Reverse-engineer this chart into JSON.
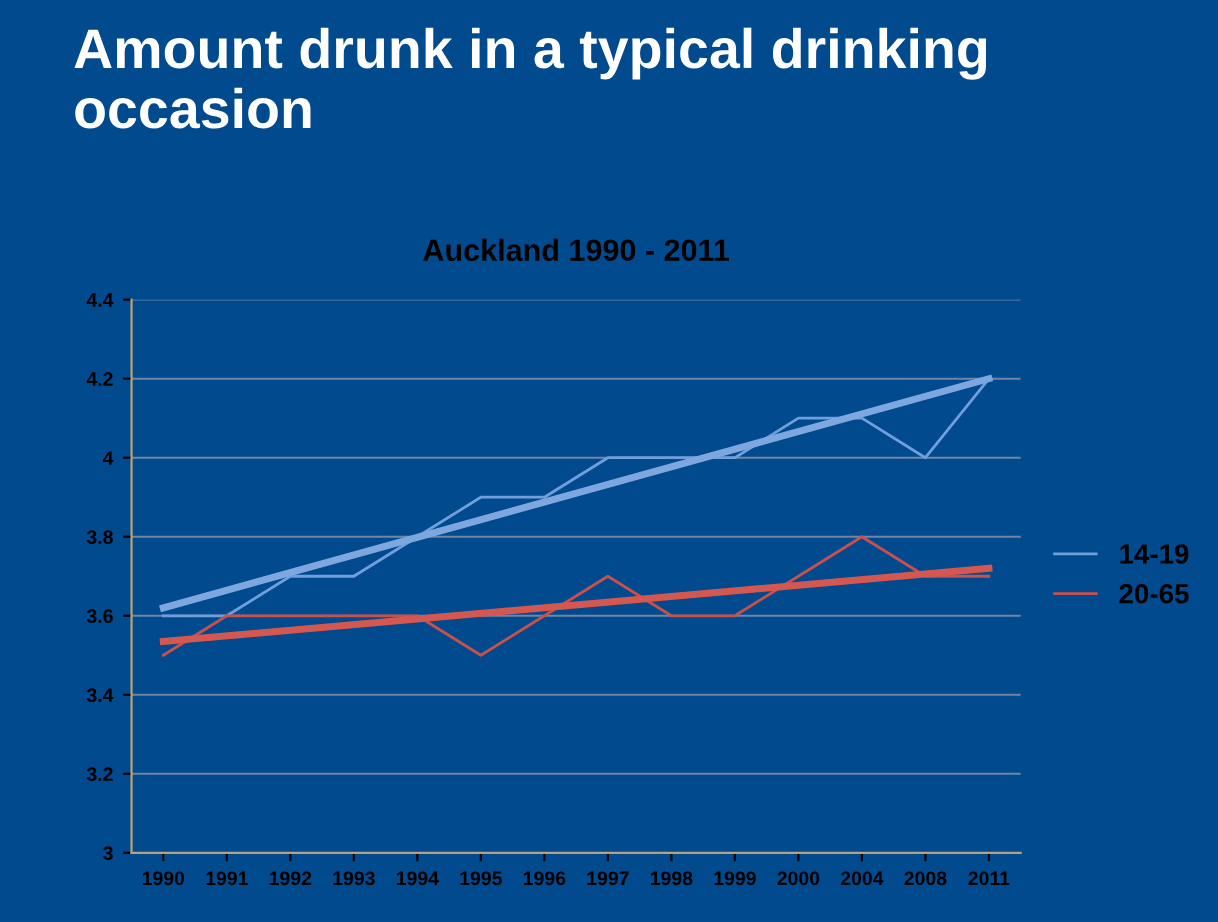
{
  "chart_data": {
    "type": "line",
    "title": "Amount drunk in a typical drinking occasion",
    "subtitle": "Auckland 1990 - 2011",
    "categories": [
      "1990",
      "1991",
      "1992",
      "1993",
      "1994",
      "1995",
      "1996",
      "1997",
      "1998",
      "1999",
      "2000",
      "2004",
      "2008",
      "2011"
    ],
    "series": [
      {
        "name": "14-19",
        "color": "#6f9fdc",
        "values": [
          3.6,
          3.6,
          3.7,
          3.7,
          3.8,
          3.9,
          3.9,
          4.0,
          4.0,
          4.0,
          4.1,
          4.1,
          4.0,
          4.2
        ]
      },
      {
        "name": "20-65",
        "color": "#c8504d",
        "values": [
          3.5,
          3.6,
          3.6,
          3.6,
          3.6,
          3.5,
          3.6,
          3.7,
          3.6,
          3.6,
          3.7,
          3.8,
          3.7,
          3.7
        ]
      },
      {
        "color": "#7ea7e0",
        "values": [
          3.62,
          null,
          null,
          null,
          null,
          null,
          null,
          null,
          null,
          null,
          null,
          null,
          null,
          4.2
        ]
      },
      {
        "color": "#d4584f",
        "values": [
          3.535,
          null,
          null,
          null,
          null,
          null,
          null,
          null,
          null,
          null,
          null,
          null,
          null,
          3.72
        ]
      }
    ],
    "ylim": [
      3,
      4.4
    ],
    "yticks": [
      3,
      3.2,
      3.4,
      3.6,
      3.8,
      4,
      4.2,
      4.4
    ],
    "grid": "y",
    "legend": "right",
    "marker": "none",
    "line_style": "solid"
  }
}
